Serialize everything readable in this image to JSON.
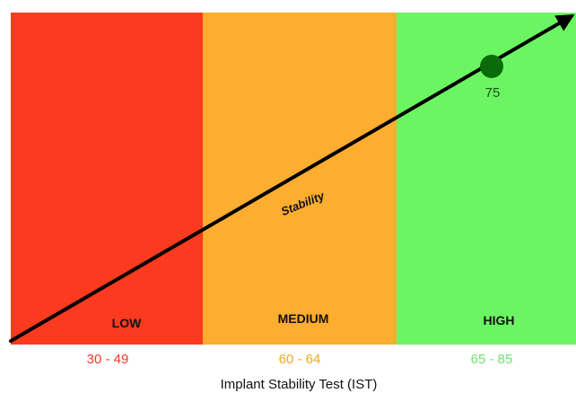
{
  "chart_data": {
    "type": "area",
    "zones": [
      {
        "label": "LOW",
        "range": "30 - 49",
        "color": "#fc3a1f",
        "range_color": "#ee3a24"
      },
      {
        "label": "MEDIUM",
        "range": "60 - 64",
        "color": "#fdad2f",
        "range_color": "#f5a623"
      },
      {
        "label": "HIGH",
        "range": "65 - 85",
        "color": "#6cf562",
        "range_color": "#6ee36a"
      }
    ],
    "trend_line": {
      "label": "Stability",
      "color": "#000000"
    },
    "point": {
      "value": 75,
      "label": "75",
      "color": "#0b6b0b"
    },
    "xlabel": "Implant Stability Test (IST)"
  }
}
